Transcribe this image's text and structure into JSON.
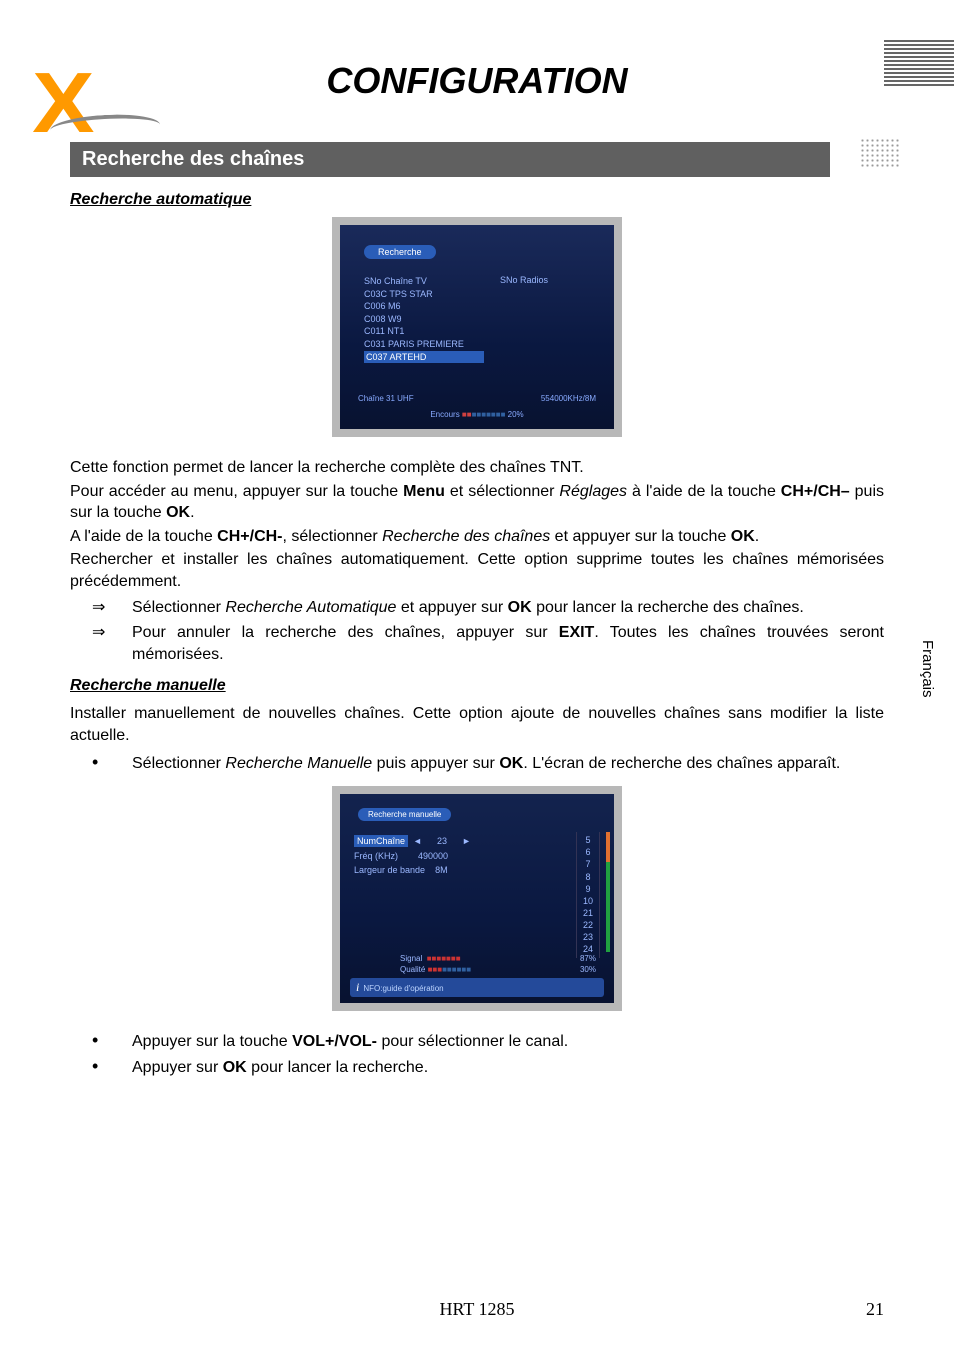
{
  "page_title": "CONFIGURATION",
  "section_bar": "Recherche des chaînes",
  "sub1": "Recherche automatique",
  "sub2": "Recherche manuelle",
  "side_label": "Français",
  "footer_model": "HRT 1285",
  "page_number": "21",
  "screenshot1": {
    "tab": "Recherche",
    "col_left_header": "SNo  Chaîne TV",
    "col_right_header": "SNo  Radios",
    "rows": [
      "C03C  TPS STAR",
      "C006  M6",
      "C008  W9",
      "C011  NT1",
      "C031  PARIS PREMIERE"
    ],
    "row_hl": "C037  ARTEHD",
    "status_left": "Chaîne  31 UHF",
    "status_right": "554000KHz/8M",
    "progress_label_pre": "Encours ",
    "progress_pct": " 20%"
  },
  "screenshot2": {
    "tab": "Recherche manuelle",
    "row1_label": "NumChaîne",
    "row1_val": "23",
    "row2_label": "Fréq (KHz)",
    "row2_val": "490000",
    "row3_label": "Largeur de bande",
    "row3_val": "8M",
    "list": [
      "5",
      "6",
      "7",
      "8",
      "9",
      "10",
      "21",
      "22",
      "23",
      "24"
    ],
    "sig_label": "Signal",
    "qual_label": "Qualité",
    "sig_pct": "87%",
    "qual_pct": "30%",
    "info": "NFO:guide d'opération"
  },
  "para1_a": "Cette fonction permet de lancer la recherche complète des chaînes TNT.",
  "para1_b_pre": "Pour accéder au menu, appuyer sur la touche ",
  "para1_b_bold": "Menu",
  "para1_b_mid": " et sélectionner ",
  "para1_b_ital": "Réglages",
  "para1_b_post": " à l'aide de la touche ",
  "para1_c_bold": "CH+/CH–",
  "para1_c_mid": " puis sur la touche ",
  "para1_c_bold2": "OK",
  "para1_c_end": ".",
  "para1_d_pre": "A l'aide de la touche ",
  "para1_d_bold": "CH+/CH-",
  "para1_d_mid": ", sélectionner ",
  "para1_d_ital": "Recherche des chaînes",
  "para1_d_mid2": " et appuyer sur la touche ",
  "para1_d_bold2": "OK",
  "para1_d_end": ".",
  "para1_e": "Rechercher et installer les chaînes automatiquement. Cette option supprime toutes les chaînes mémorisées précédemment.",
  "arrow1_pre": "Sélectionner ",
  "arrow1_ital": "Recherche Automatique",
  "arrow1_mid": " et appuyer sur ",
  "arrow1_bold": "OK",
  "arrow1_post": " pour lancer la recherche des chaînes.",
  "arrow2_pre": "Pour annuler la recherche des chaînes, appuyer sur ",
  "arrow2_bold": "EXIT",
  "arrow2_post": ".  Toutes les chaînes trouvées seront mémorisées.",
  "para2": "Installer manuellement de nouvelles chaînes. Cette option ajoute de nouvelles chaînes sans modifier la liste actuelle.",
  "bullet1_pre": "Sélectionner ",
  "bullet1_ital": "Recherche Manuelle",
  "bullet1_mid": " puis appuyer sur ",
  "bullet1_bold": "OK",
  "bullet1_post": ". L'écran de recherche des chaînes apparaît.",
  "bullet2_pre": "Appuyer sur la touche ",
  "bullet2_bold": "VOL+/VOL-",
  "bullet2_post": " pour sélectionner le canal.",
  "bullet3_pre": "Appuyer sur ",
  "bullet3_bold": "OK",
  "bullet3_post": " pour lancer la recherche."
}
